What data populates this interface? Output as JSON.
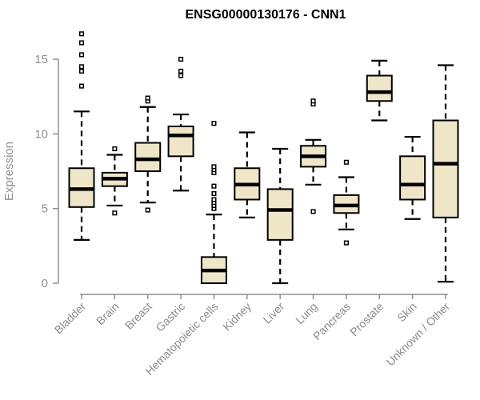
{
  "chart_data": {
    "type": "boxplot",
    "title": "ENSG00000130176 - CNN1",
    "ylabel": "Expression",
    "xlabel": "",
    "yticks": [
      0,
      5,
      10,
      15
    ],
    "ylim": [
      0,
      17
    ],
    "grid": false,
    "legend": "none",
    "categories": [
      "Bladder",
      "Brain",
      "Breast",
      "Gastric",
      "Hematopoietic cells",
      "Kidney",
      "Liver",
      "Lung",
      "Pancreas",
      "Prostate",
      "Skin",
      "Unknown / Other"
    ],
    "boxes": [
      {
        "category": "Bladder",
        "low": 2.9,
        "q1": 5.1,
        "median": 6.3,
        "q3": 7.7,
        "high": 11.5,
        "outliers": [
          13.2,
          14.2,
          14.5,
          15.3,
          16.1,
          16.7
        ]
      },
      {
        "category": "Brain",
        "low": 5.2,
        "q1": 6.5,
        "median": 7.0,
        "q3": 7.4,
        "high": 8.6,
        "outliers": [
          4.7,
          9.0
        ]
      },
      {
        "category": "Breast",
        "low": 5.4,
        "q1": 7.5,
        "median": 8.3,
        "q3": 9.4,
        "high": 11.8,
        "outliers": [
          4.9,
          12.2,
          12.4
        ]
      },
      {
        "category": "Gastric",
        "low": 6.2,
        "q1": 8.5,
        "median": 9.9,
        "q3": 10.5,
        "high": 11.3,
        "outliers": [
          13.9,
          14.2,
          15.0
        ]
      },
      {
        "category": "Hematopoietic cells",
        "low": 0.0,
        "q1": 0.0,
        "median": 0.85,
        "q3": 1.75,
        "high": 4.6,
        "outliers": [
          5.0,
          5.2,
          5.4,
          5.6,
          6.0,
          6.5,
          7.4,
          7.6,
          7.8,
          10.7
        ]
      },
      {
        "category": "Kidney",
        "low": 4.4,
        "q1": 5.6,
        "median": 6.6,
        "q3": 7.7,
        "high": 10.1,
        "outliers": []
      },
      {
        "category": "Liver",
        "low": 0.0,
        "q1": 2.9,
        "median": 4.9,
        "q3": 6.3,
        "high": 9.0,
        "outliers": []
      },
      {
        "category": "Lung",
        "low": 6.6,
        "q1": 7.8,
        "median": 8.5,
        "q3": 9.2,
        "high": 9.6,
        "outliers": [
          4.8,
          12.0,
          12.2
        ]
      },
      {
        "category": "Pancreas",
        "low": 3.6,
        "q1": 4.7,
        "median": 5.2,
        "q3": 5.9,
        "high": 7.1,
        "outliers": [
          2.7,
          8.1
        ]
      },
      {
        "category": "Prostate",
        "low": 10.9,
        "q1": 12.2,
        "median": 12.8,
        "q3": 13.9,
        "high": 14.9,
        "outliers": []
      },
      {
        "category": "Skin",
        "low": 4.3,
        "q1": 5.6,
        "median": 6.6,
        "q3": 8.5,
        "high": 9.8,
        "outliers": []
      },
      {
        "category": "Unknown / Other",
        "low": 0.1,
        "q1": 4.4,
        "median": 8.0,
        "q3": 10.9,
        "high": 14.6,
        "outliers": []
      }
    ],
    "colors": {
      "axis": "#8f8f8f",
      "tick_label": "#8f8f8f",
      "category_label": "#8a8a8a",
      "title": "#000000",
      "box_fill": "#EFE6C8",
      "box_border": "#000000",
      "median": "#000000",
      "background": "#ffffff"
    }
  }
}
